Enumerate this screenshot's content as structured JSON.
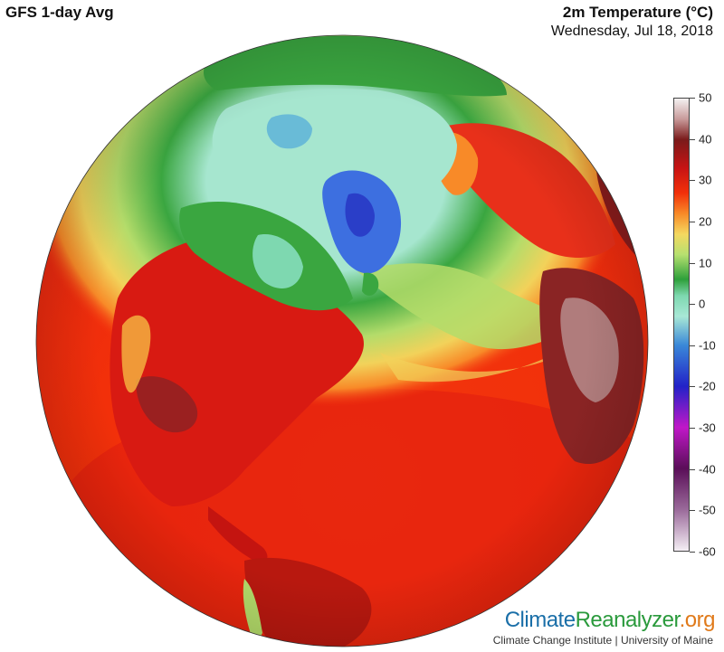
{
  "header": {
    "model_label": "GFS 1-day Avg",
    "variable_label": "2m Temperature (°C)",
    "date_label": "Wednesday, Jul 18, 2018"
  },
  "colorbar": {
    "ticks": [
      "50",
      "40",
      "30",
      "20",
      "10",
      "0",
      "-10",
      "-20",
      "-30",
      "-40",
      "-50",
      "-60"
    ],
    "range": [
      -60,
      50
    ],
    "stops": [
      {
        "value": 50,
        "color": "#f4f2f2"
      },
      {
        "value": 45,
        "color": "#c89a9a"
      },
      {
        "value": 40,
        "color": "#7a1a1a"
      },
      {
        "value": 33,
        "color": "#c81414"
      },
      {
        "value": 27,
        "color": "#f2300a"
      },
      {
        "value": 22,
        "color": "#f88a28"
      },
      {
        "value": 17,
        "color": "#f4d860"
      },
      {
        "value": 12,
        "color": "#b6e070"
      },
      {
        "value": 6,
        "color": "#2ea03a"
      },
      {
        "value": 2,
        "color": "#7ed8b0"
      },
      {
        "value": -3,
        "color": "#a8e8d6"
      },
      {
        "value": -10,
        "color": "#3a88d8"
      },
      {
        "value": -20,
        "color": "#2222c8"
      },
      {
        "value": -30,
        "color": "#c018c8"
      },
      {
        "value": -40,
        "color": "#5a0e58"
      },
      {
        "value": -50,
        "color": "#9a6a9a"
      },
      {
        "value": -60,
        "color": "#f4eef4"
      }
    ]
  },
  "map": {
    "projection": "orthographic",
    "center": "North Atlantic / North America",
    "colors": {
      "ocean_warm": "#f4300e",
      "ocean_hot": "#d81a10",
      "ocean_mid": "#f87a28",
      "subtropical_band": "#f2d25a",
      "mid_latitude": "#b4dc6a",
      "boreal": "#3aa640",
      "arctic_ocean": "#a6e6cf",
      "greenland_ice": "#3d6fe0",
      "desert_hot": "#7a2020",
      "desert_max": "#b88a8a"
    }
  },
  "branding": {
    "part1": "Climate",
    "part2": "Reanalyzer",
    "part3": ".org",
    "credit": "Climate Change Institute | University of Maine"
  }
}
